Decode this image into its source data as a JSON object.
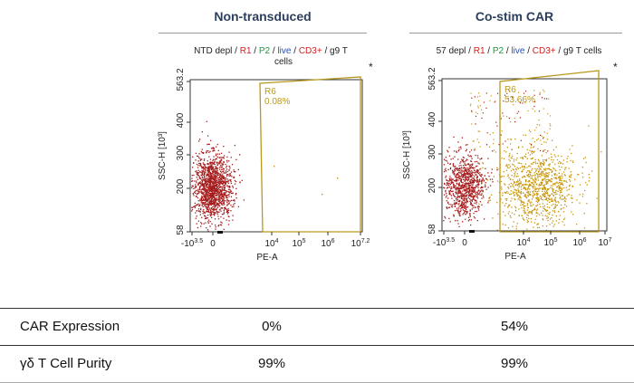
{
  "chart_data": [
    {
      "type": "scatter",
      "column_title": "Non-transduced",
      "gate_path": "NTD depl / R1 / P2 / live / CD3+ / g9 T cells",
      "gate_path_parts": [
        {
          "text": "NTD depl",
          "color": "#222222"
        },
        {
          "text": "R1",
          "color": "#cc2222"
        },
        {
          "text": "P2",
          "color": "#1f9a3a"
        },
        {
          "text": "live",
          "color": "#2a4fb0"
        },
        {
          "text": "CD3+",
          "color": "#cc2222"
        },
        {
          "text": "g9 T",
          "color": "#222222"
        }
      ],
      "gate_path_line2": "cells",
      "xlabel": "PE-A",
      "ylabel": "SSC-H [10³]",
      "x_ticks": [
        {
          "base": "-10",
          "exp": "3.5"
        },
        {
          "base": "0",
          "exp": ""
        },
        {
          "base": "10",
          "exp": "4"
        },
        {
          "base": "10",
          "exp": "5"
        },
        {
          "base": "10",
          "exp": "6"
        },
        {
          "base": "10",
          "exp": "7.2"
        }
      ],
      "y_ticks": [
        "58",
        "200",
        "300",
        "400",
        "563.2"
      ],
      "ylim": [
        58,
        563.2
      ],
      "gate_name": "R6",
      "gate_percent": "0.08%",
      "gate_percent_value": 0.08,
      "marker": "*",
      "population_colors": {
        "negative": "#a61c1c",
        "positive": "#c8960c"
      }
    },
    {
      "type": "scatter",
      "column_title": "Co-stim CAR",
      "gate_path": "57 depl / R1 / P2 / live / CD3+ / g9 T cells",
      "gate_path_parts": [
        {
          "text": "57 depl",
          "color": "#222222"
        },
        {
          "text": "R1",
          "color": "#cc2222"
        },
        {
          "text": "P2",
          "color": "#1f9a3a"
        },
        {
          "text": "live",
          "color": "#2a4fb0"
        },
        {
          "text": "CD3+",
          "color": "#cc2222"
        },
        {
          "text": "g9 T cells",
          "color": "#222222"
        }
      ],
      "gate_path_line2": "",
      "xlabel": "PE-A",
      "ylabel": "SSC-H [10³]",
      "x_ticks": [
        {
          "base": "-10",
          "exp": "3.5"
        },
        {
          "base": "0",
          "exp": ""
        },
        {
          "base": "10",
          "exp": "4"
        },
        {
          "base": "10",
          "exp": "5"
        },
        {
          "base": "10",
          "exp": "6"
        },
        {
          "base": "10",
          "exp": "7"
        }
      ],
      "y_ticks": [
        "58",
        "200",
        "300",
        "400",
        "563.2"
      ],
      "ylim": [
        58,
        563.2
      ],
      "gate_name": "R6",
      "gate_percent": "53.66%",
      "gate_percent_value": 53.66,
      "marker": "*",
      "population_colors": {
        "negative": "#a61c1c",
        "positive": "#c8960c"
      }
    }
  ],
  "summary_table": {
    "rows": [
      {
        "label": "CAR Expression",
        "values": [
          "0%",
          "54%"
        ]
      },
      {
        "label": "γδ T Cell Purity",
        "values": [
          "99%",
          "99%"
        ]
      }
    ]
  }
}
